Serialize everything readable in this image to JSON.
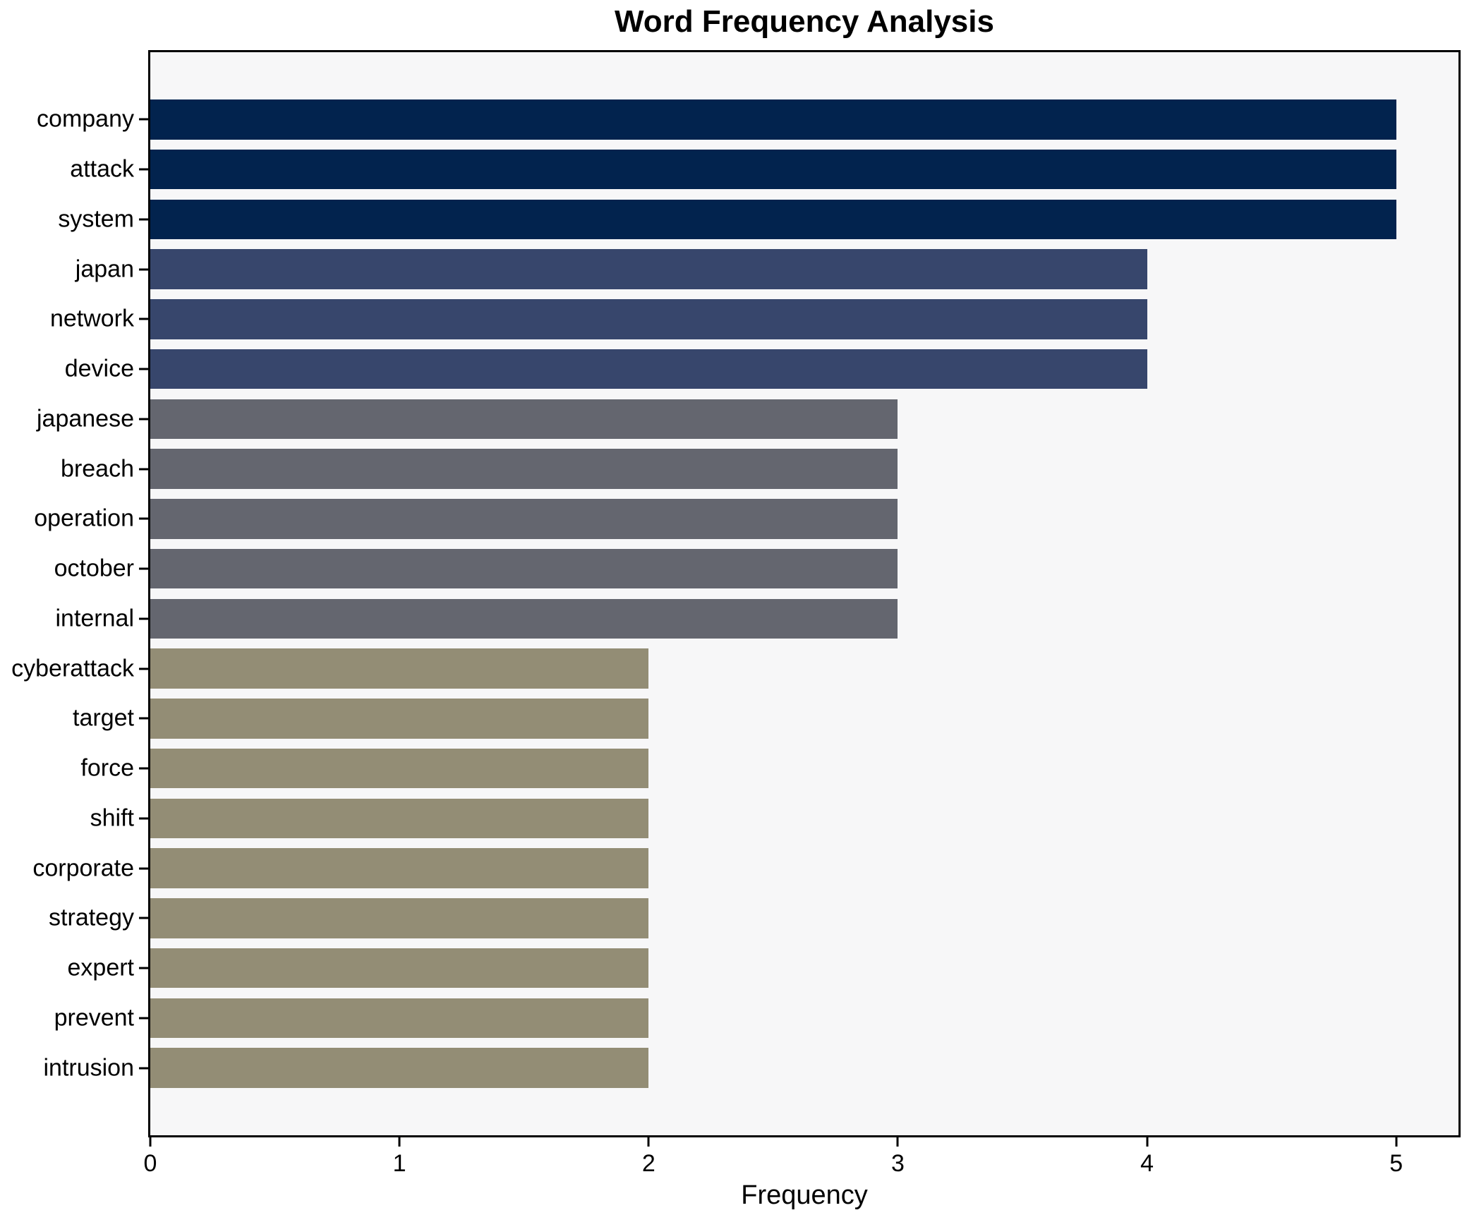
{
  "chart_data": {
    "type": "bar",
    "orientation": "horizontal",
    "title": "Word Frequency Analysis",
    "xlabel": "Frequency",
    "ylabel": "",
    "categories": [
      "company",
      "attack",
      "system",
      "japan",
      "network",
      "device",
      "japanese",
      "breach",
      "operation",
      "october",
      "internal",
      "cyberattack",
      "target",
      "force",
      "shift",
      "corporate",
      "strategy",
      "expert",
      "prevent",
      "intrusion"
    ],
    "values": [
      5,
      5,
      5,
      4,
      4,
      4,
      3,
      3,
      3,
      3,
      3,
      2,
      2,
      2,
      2,
      2,
      2,
      2,
      2,
      2
    ],
    "bar_colors": [
      "#02234e",
      "#02234e",
      "#02234e",
      "#37466c",
      "#37466c",
      "#37466c",
      "#64666f",
      "#64666f",
      "#64666f",
      "#64666f",
      "#64666f",
      "#938d75",
      "#938d75",
      "#938d75",
      "#938d75",
      "#938d75",
      "#938d75",
      "#938d75",
      "#938d75",
      "#938d75"
    ],
    "xlim": [
      0,
      5.25
    ],
    "xticks": [
      0,
      1,
      2,
      3,
      4,
      5
    ],
    "grid": false,
    "legend": null,
    "plot_background": "#f7f7f8",
    "figure_background": "#ffffff",
    "spine_color": "#000000",
    "text_color": "#000000"
  }
}
